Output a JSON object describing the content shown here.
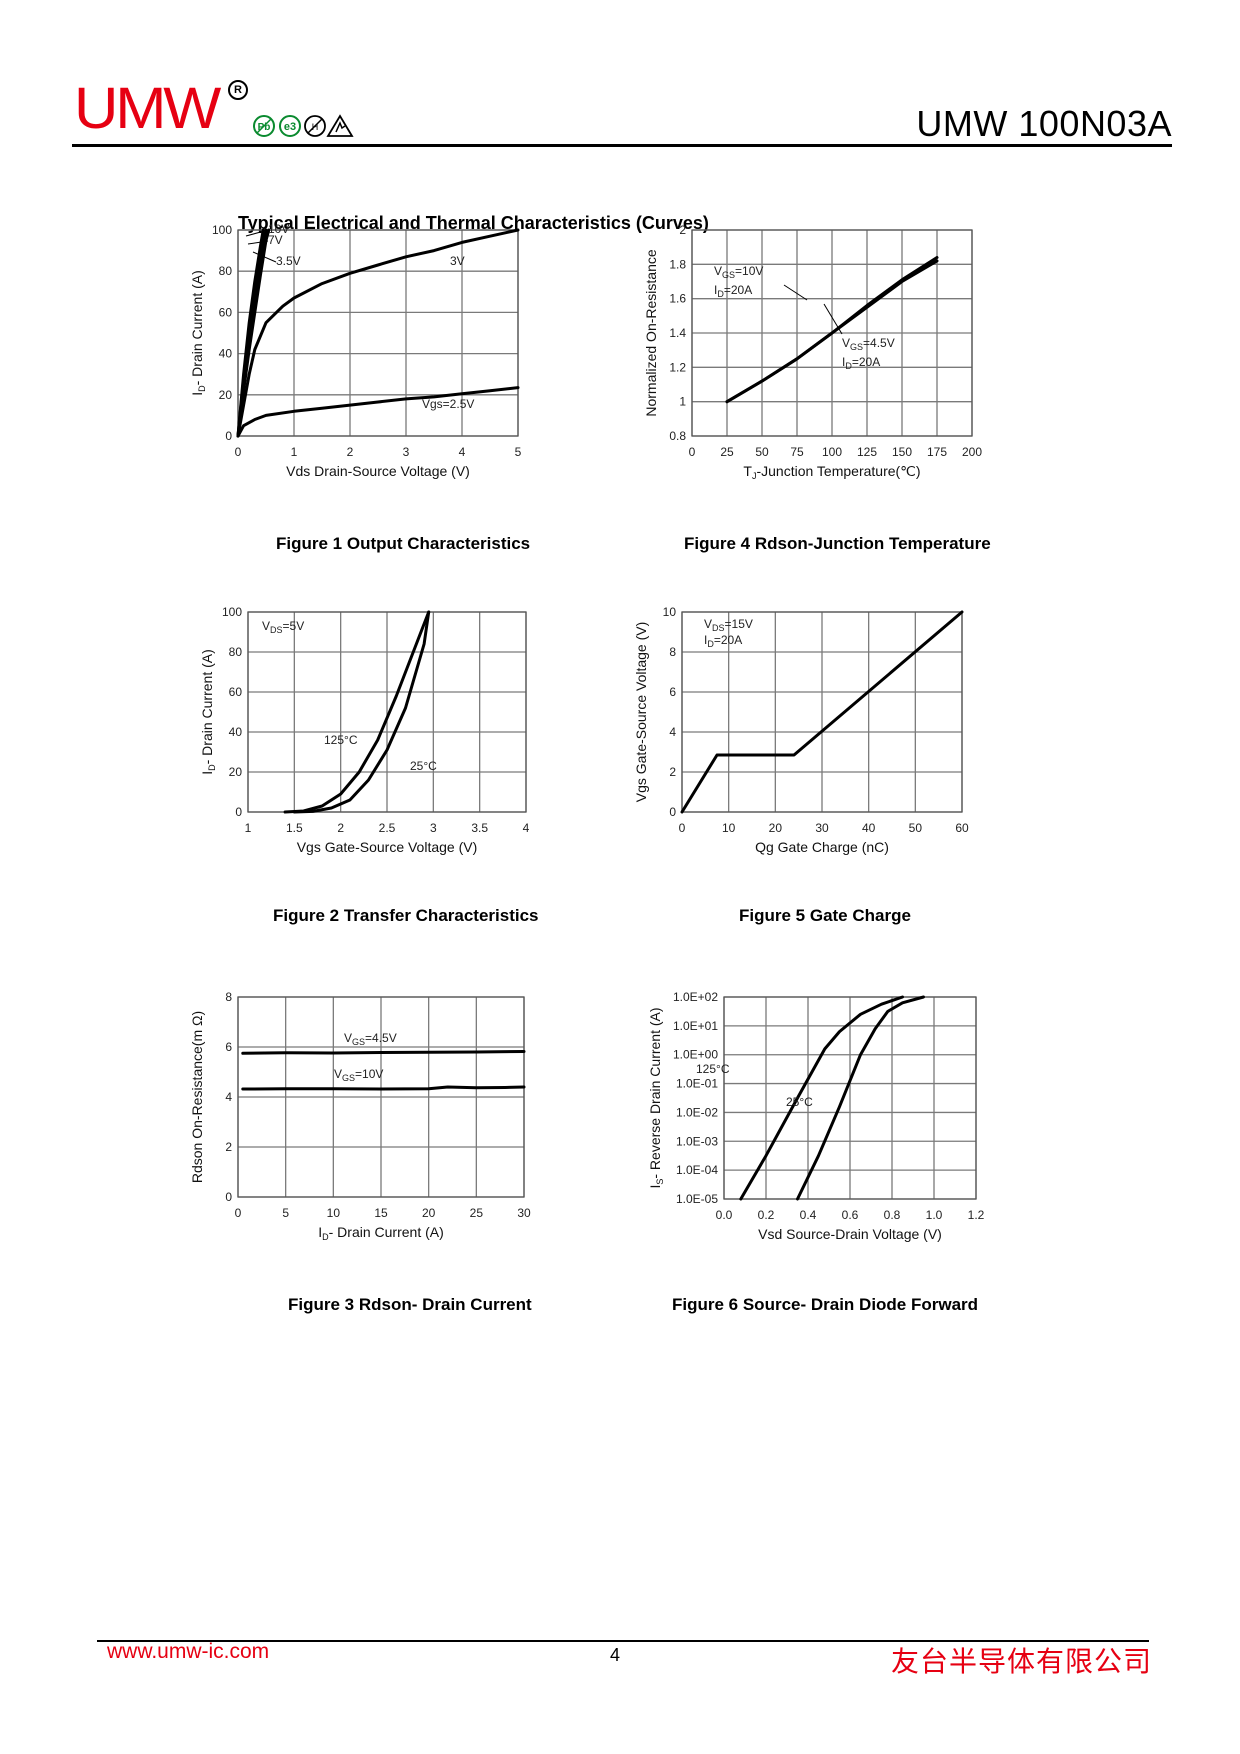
{
  "header": {
    "brand": "UMW",
    "registered": "R",
    "title": "UMW 100N03A",
    "cert_icons": [
      "pb-free-icon",
      "e3-icon",
      "no-halogen-icon",
      "esd-icon"
    ]
  },
  "section_title": "Typical Electrical and Thermal Characteristics (Curves)",
  "chart_data": [
    {
      "id": "fig1",
      "type": "line",
      "title": "Figure 1 Output Characteristics",
      "xlabel": "Vds Drain-Source Voltage (V)",
      "ylabel": "ID- Drain Current (A)",
      "xlim": [
        0,
        5
      ],
      "ylim": [
        0,
        100
      ],
      "xticks": [
        "0",
        "1",
        "2",
        "3",
        "4",
        "5"
      ],
      "yticks": [
        "0",
        "20",
        "40",
        "60",
        "80",
        "100"
      ],
      "grid": true,
      "series": [
        {
          "name": "10V",
          "x": [
            0,
            0.1,
            0.2,
            0.3,
            0.4,
            0.45
          ],
          "y": [
            0,
            30,
            55,
            75,
            92,
            100
          ]
        },
        {
          "name": "7V",
          "x": [
            0,
            0.1,
            0.2,
            0.3,
            0.4,
            0.5
          ],
          "y": [
            0,
            28,
            50,
            68,
            86,
            100
          ]
        },
        {
          "name": "3.5V",
          "x": [
            0,
            0.1,
            0.2,
            0.3,
            0.4,
            0.5,
            0.55
          ],
          "y": [
            0,
            22,
            42,
            60,
            78,
            95,
            100
          ]
        },
        {
          "name": "3V",
          "x": [
            0,
            0.1,
            0.2,
            0.3,
            0.5,
            0.8,
            1.0,
            1.5,
            2.0,
            2.5,
            3.0,
            3.5,
            4.0,
            4.5,
            5.0
          ],
          "y": [
            0,
            15,
            30,
            42,
            55,
            63,
            67,
            74,
            79,
            83,
            87,
            90,
            94,
            97,
            100
          ]
        },
        {
          "name": "Vgs=2.5V",
          "x": [
            0,
            0.1,
            0.3,
            0.5,
            1.0,
            1.5,
            2.0,
            2.5,
            3.0,
            3.5,
            4.0,
            4.5,
            5.0
          ],
          "y": [
            0,
            5,
            8,
            10,
            12,
            13.5,
            15,
            16.5,
            18,
            19,
            20.5,
            22,
            23.5
          ]
        }
      ],
      "annotations": [
        "10V",
        "7V",
        "3.5V",
        "3V",
        "Vgs=2.5V"
      ]
    },
    {
      "id": "fig4",
      "type": "line",
      "title": "Figure 4 Rdson-Junction Temperature",
      "xlabel": "TJ-Junction Temperature(℃)",
      "ylabel": "Normalized On-Resistance",
      "xlim": [
        0,
        200
      ],
      "ylim": [
        0.8,
        2
      ],
      "xticks": [
        "0",
        "25",
        "50",
        "75",
        "100",
        "125",
        "150",
        "175",
        "200"
      ],
      "yticks": [
        "0.8",
        "1",
        "1.2",
        "1.4",
        "1.6",
        "1.8",
        "2"
      ],
      "grid": true,
      "series": [
        {
          "name": "VGS=10V, ID=20A",
          "x": [
            25,
            50,
            75,
            100,
            125,
            150,
            175
          ],
          "y": [
            1.0,
            1.12,
            1.25,
            1.4,
            1.56,
            1.71,
            1.84
          ]
        },
        {
          "name": "VGS=4.5V, ID=20A",
          "x": [
            25,
            50,
            75,
            100,
            125,
            150,
            175
          ],
          "y": [
            1.0,
            1.12,
            1.25,
            1.4,
            1.55,
            1.7,
            1.82
          ]
        }
      ],
      "annotations": [
        "VGS=10V",
        "ID=20A",
        "VGS=4.5V",
        "ID=20A"
      ]
    },
    {
      "id": "fig2",
      "type": "line",
      "title": "Figure 2 Transfer Characteristics",
      "xlabel": "Vgs Gate-Source Voltage (V)",
      "ylabel": "ID- Drain Current (A)",
      "xlim": [
        1,
        4
      ],
      "ylim": [
        0,
        100
      ],
      "xticks": [
        "1",
        "1.5",
        "2",
        "2.5",
        "3",
        "3.5",
        "4"
      ],
      "yticks": [
        "0",
        "20",
        "40",
        "60",
        "80",
        "100"
      ],
      "grid": true,
      "series": [
        {
          "name": "125°C",
          "x": [
            1.4,
            1.6,
            1.8,
            2.0,
            2.2,
            2.4,
            2.6,
            2.8,
            2.95
          ],
          "y": [
            0,
            0.5,
            3,
            9,
            20,
            36,
            58,
            82,
            100
          ]
        },
        {
          "name": "25°C",
          "x": [
            1.5,
            1.7,
            1.9,
            2.1,
            2.3,
            2.5,
            2.7,
            2.9,
            2.95
          ],
          "y": [
            0,
            0.3,
            2,
            6,
            16,
            31,
            52,
            84,
            100
          ]
        }
      ],
      "annotations": [
        "VDS=5V",
        "125°C",
        "25°C"
      ]
    },
    {
      "id": "fig5",
      "type": "line",
      "title": "Figure 5 Gate Charge",
      "xlabel": "Qg Gate Charge (nC)",
      "ylabel": "Vgs Gate-Source Voltage (V)",
      "xlim": [
        0,
        60
      ],
      "ylim": [
        0,
        10
      ],
      "xticks": [
        "0",
        "10",
        "20",
        "30",
        "40",
        "50",
        "60"
      ],
      "yticks": [
        "0",
        "2",
        "4",
        "6",
        "8",
        "10"
      ],
      "grid": true,
      "series": [
        {
          "name": "VDS=15V, ID=20A",
          "x": [
            0,
            7.5,
            24,
            60
          ],
          "y": [
            0,
            2.85,
            2.85,
            10
          ]
        }
      ],
      "annotations": [
        "VDS=15V",
        "ID=20A"
      ]
    },
    {
      "id": "fig3",
      "type": "line",
      "title": "Figure 3 Rdson- Drain Current",
      "xlabel": "ID- Drain Current (A)",
      "ylabel": "Rdson On-Resistance(m Ω)",
      "xlim": [
        0,
        30
      ],
      "ylim": [
        0,
        8
      ],
      "xticks": [
        "0",
        "5",
        "10",
        "15",
        "20",
        "25",
        "30"
      ],
      "yticks": [
        "0",
        "2",
        "4",
        "6",
        "8"
      ],
      "grid": true,
      "series": [
        {
          "name": "VGS=4.5V",
          "x": [
            0.5,
            5,
            10,
            15,
            20,
            25,
            30
          ],
          "y": [
            5.75,
            5.77,
            5.76,
            5.78,
            5.79,
            5.8,
            5.82
          ]
        },
        {
          "name": "VGS=10V",
          "x": [
            0.5,
            5,
            10,
            15,
            20,
            22,
            25,
            28,
            30
          ],
          "y": [
            4.32,
            4.33,
            4.33,
            4.32,
            4.33,
            4.4,
            4.37,
            4.38,
            4.4
          ]
        }
      ],
      "annotations": [
        "VGS=4.5V",
        "VGS=10V"
      ]
    },
    {
      "id": "fig6",
      "type": "line",
      "title": "Figure 6 Source- Drain Diode Forward",
      "xlabel": "Vsd Source-Drain Voltage (V)",
      "ylabel": "IS- Reverse Drain Current (A)",
      "xlim": [
        0,
        1.2
      ],
      "ylim": [
        -5,
        2
      ],
      "yscale": "log",
      "xticks": [
        "0.0",
        "0.2",
        "0.4",
        "0.6",
        "0.8",
        "1.0",
        "1.2"
      ],
      "yticks": [
        "1.0E-05",
        "1.0E-04",
        "1.0E-03",
        "1.0E-02",
        "1.0E-01",
        "1.0E+00",
        "1.0E+01",
        "1.0E+02"
      ],
      "grid": true,
      "series": [
        {
          "name": "125°C",
          "x": [
            0.08,
            0.2,
            0.35,
            0.48,
            0.55,
            0.65,
            0.75,
            0.85
          ],
          "y": [
            -5,
            -3.5,
            -1.5,
            0.2,
            0.8,
            1.4,
            1.75,
            2
          ]
        },
        {
          "name": "25°C",
          "x": [
            0.35,
            0.45,
            0.55,
            0.65,
            0.72,
            0.78,
            0.85,
            0.95
          ],
          "y": [
            -5,
            -3.5,
            -1.8,
            0,
            0.9,
            1.5,
            1.8,
            2
          ]
        }
      ],
      "annotations": [
        "125°C",
        "25°C"
      ]
    }
  ],
  "footer": {
    "url": "www.umw-ic.com",
    "page": "4",
    "company": "友台半导体有限公司"
  }
}
